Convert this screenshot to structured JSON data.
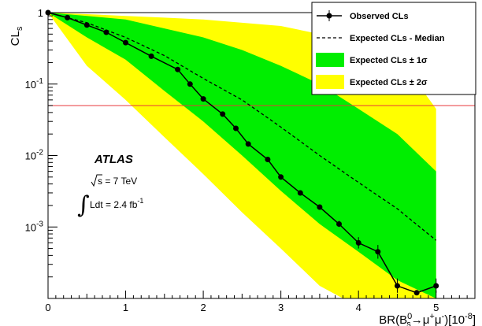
{
  "chart_data": {
    "type": "line",
    "y_scale": "log",
    "xlim": [
      0,
      5.5
    ],
    "ylim": [
      0.0001,
      1
    ],
    "xlabel_parts": {
      "pre": "BR(B",
      "sup": "0",
      "sub": "s",
      "mid": "→μ",
      "sup2": "+",
      "mid2": "μ",
      "sup3": "-",
      "post": ")[10",
      "sup4": "-8",
      "end": "]"
    },
    "ylabel": {
      "main": "CL",
      "sub": "s"
    },
    "x_ticks": [
      {
        "value": 0,
        "label": "0"
      },
      {
        "value": 1,
        "label": "1"
      },
      {
        "value": 2,
        "label": "2"
      },
      {
        "value": 3,
        "label": "3"
      },
      {
        "value": 4,
        "label": "4"
      },
      {
        "value": 5,
        "label": "5"
      }
    ],
    "y_ticks": [
      {
        "value": 1,
        "label_base": "1",
        "label_exp": ""
      },
      {
        "value": 0.1,
        "label_base": "10",
        "label_exp": "-1"
      },
      {
        "value": 0.01,
        "label_base": "10",
        "label_exp": "-2"
      },
      {
        "value": 0.001,
        "label_base": "10",
        "label_exp": "-3"
      }
    ],
    "reference_line": {
      "y": 0.05,
      "color": "#e8383b"
    },
    "observed": {
      "name": "Observed CLs",
      "x": [
        0,
        0.25,
        0.5,
        0.75,
        1.0,
        1.33,
        1.67,
        1.83,
        2.0,
        2.25,
        2.42,
        2.58,
        2.83,
        3.0,
        3.25,
        3.5,
        3.75,
        4.0,
        4.25,
        4.5,
        4.75,
        5.0
      ],
      "y": [
        1.0,
        0.85,
        0.67,
        0.53,
        0.38,
        0.245,
        0.16,
        0.1,
        0.062,
        0.038,
        0.024,
        0.0145,
        0.0088,
        0.005,
        0.003,
        0.0019,
        0.0011,
        0.0006,
        0.00045,
        0.00015,
        0.00012,
        0.00015
      ],
      "yerr_low": [
        0,
        0,
        0,
        0,
        0,
        0,
        0,
        0,
        0,
        0,
        0,
        0,
        0,
        0,
        0,
        0,
        0.0001,
        0.0001,
        9e-05,
        3e-05,
        0,
        3e-05
      ],
      "yerr_high": [
        0,
        0,
        0,
        0,
        0,
        0,
        0,
        0,
        0,
        0,
        0,
        0,
        0,
        0,
        0,
        0,
        0.00012,
        0.00012,
        0.00011,
        4e-05,
        0,
        4e-05
      ],
      "color": "#000000"
    },
    "expected": {
      "name": "Expected CLs - Median",
      "x": [
        0,
        0.5,
        1.0,
        1.5,
        2.0,
        2.5,
        3.0,
        3.5,
        4.0,
        4.5,
        5.0
      ],
      "y": [
        1.0,
        0.72,
        0.45,
        0.25,
        0.12,
        0.06,
        0.025,
        0.01,
        0.0042,
        0.0018,
        0.00065
      ]
    },
    "band_1sigma": {
      "name": "Expected CLs ± 1σ",
      "color": "#00ee00",
      "x": [
        0,
        0.5,
        1.0,
        1.5,
        2.0,
        2.5,
        3.0,
        3.5,
        4.0,
        4.5,
        5.0
      ],
      "upper": [
        1.0,
        0.9,
        0.8,
        0.6,
        0.45,
        0.3,
        0.18,
        0.1,
        0.045,
        0.02,
        0.006
      ],
      "lower": [
        1.0,
        0.45,
        0.22,
        0.08,
        0.03,
        0.01,
        0.0032,
        0.0011,
        0.00045,
        0.00018,
        0.0001
      ]
    },
    "band_2sigma": {
      "name": "Expected CLs ± 2σ",
      "color": "#ffff00",
      "x": [
        0,
        0.5,
        1.0,
        1.5,
        2.0,
        2.5,
        3.0,
        3.5,
        3.8,
        4.0,
        4.5,
        5.0
      ],
      "upper": [
        1.0,
        0.95,
        0.9,
        0.85,
        0.8,
        0.72,
        0.65,
        0.5,
        0.4,
        0.35,
        0.25,
        0.045
      ],
      "lower": [
        1.0,
        0.18,
        0.06,
        0.018,
        0.0055,
        0.0016,
        0.0005,
        0.00015,
        0.0001,
        0.0001,
        0.0001,
        0.0001
      ]
    },
    "legend_position": "top-right",
    "grid": false
  },
  "annotations": {
    "experiment": "ATLAS",
    "energy_sqrt": "s",
    "energy_value": " = 7 TeV",
    "lumi_pre": "Ldt = 2.4 fb",
    "lumi_exp": "-1"
  }
}
